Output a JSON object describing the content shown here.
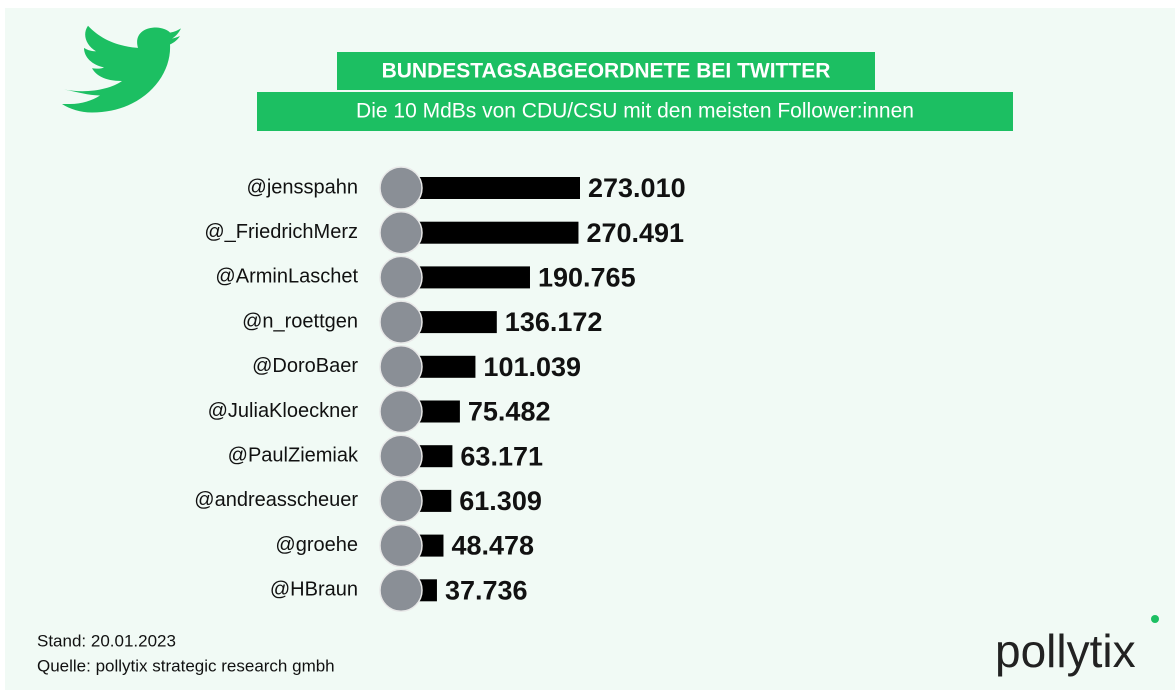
{
  "chart_data": {
    "type": "bar",
    "orientation": "horizontal",
    "title": "BUNDESTAGSABGEORDNETE BEI TWITTER",
    "subtitle": "Die 10 MdBs von CDU/CSU mit den meisten Follower:innen",
    "categories": [
      "@jensspahn",
      "@_FriedrichMerz",
      "@ArminLaschet",
      "@n_roettgen",
      "@DoroBaer",
      "@JuliaKloeckner",
      "@PaulZiemiak",
      "@andreasscheuer",
      "@groehe",
      "@HBraun"
    ],
    "values": [
      273010,
      270491,
      190765,
      136172,
      101039,
      75482,
      63171,
      61309,
      48478,
      37736
    ],
    "value_labels": [
      "273.010",
      "270.491",
      "190.765",
      "136.172",
      "101.039",
      "75.482",
      "63.171",
      "61.309",
      "48.478",
      "37.736"
    ],
    "color": "#000000",
    "accent_color": "#1cbf62",
    "footer": [
      "Stand: 20.01.2023",
      "Quelle: pollytix strategic research gmbh"
    ],
    "logo": "pollytix"
  }
}
